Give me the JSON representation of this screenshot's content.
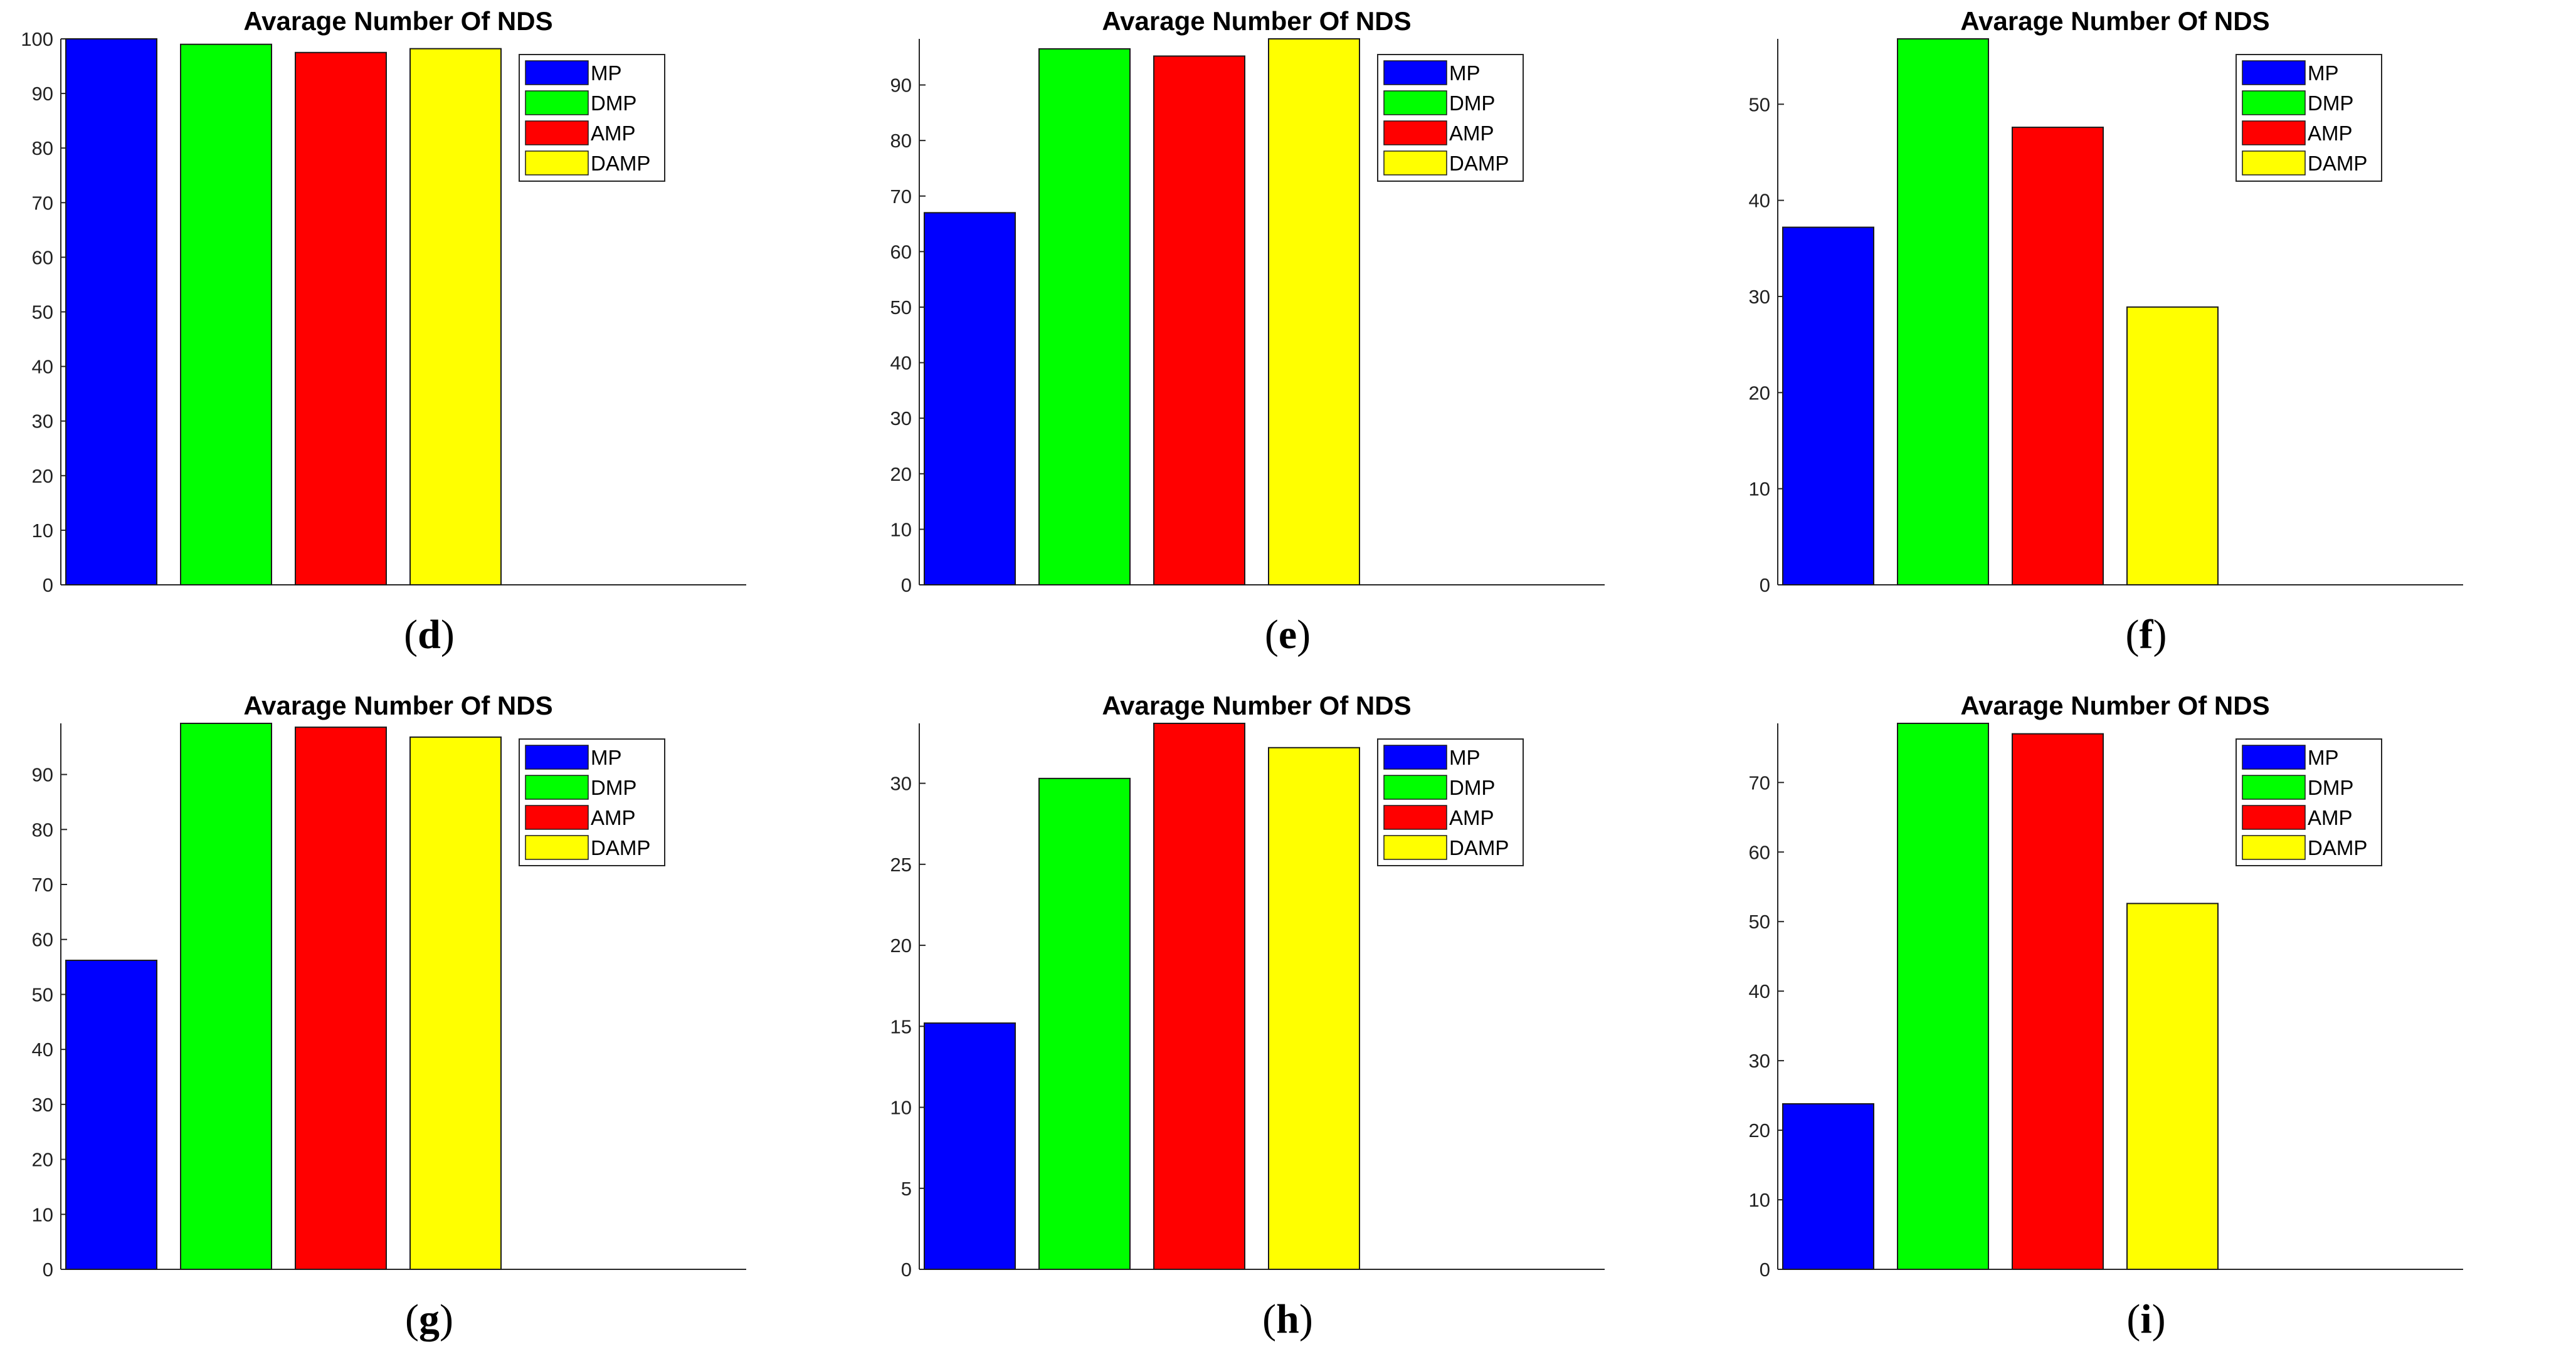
{
  "chart_data": [
    {
      "id": "d",
      "caption": "d",
      "type": "bar",
      "title": "Avarage Number Of NDS",
      "categories": [
        "MP",
        "DMP",
        "AMP",
        "DAMP"
      ],
      "values": [
        100,
        99,
        97.5,
        98.2
      ],
      "colors": [
        "#0000ff",
        "#00ff00",
        "#ff0000",
        "#ffff00"
      ],
      "ylim": [
        0,
        100
      ],
      "yticks": [
        0,
        10,
        20,
        30,
        40,
        50,
        60,
        70,
        80,
        90,
        100
      ],
      "legend": [
        "MP",
        "DMP",
        "AMP",
        "DAMP"
      ],
      "legend_position": "top-right"
    },
    {
      "id": "e",
      "caption": "e",
      "type": "bar",
      "title": "Avarage Number Of NDS",
      "categories": [
        "MP",
        "DMP",
        "AMP",
        "DAMP"
      ],
      "values": [
        67,
        96.5,
        95.2,
        98.3
      ],
      "colors": [
        "#0000ff",
        "#00ff00",
        "#ff0000",
        "#ffff00"
      ],
      "ylim": [
        0,
        98.3
      ],
      "yticks": [
        0,
        10,
        20,
        30,
        40,
        50,
        60,
        70,
        80,
        90
      ],
      "legend": [
        "MP",
        "DMP",
        "AMP",
        "DAMP"
      ],
      "legend_position": "top-right"
    },
    {
      "id": "f",
      "caption": "f",
      "type": "bar",
      "title": "Avarage Number Of NDS",
      "categories": [
        "MP",
        "DMP",
        "AMP",
        "DAMP"
      ],
      "values": [
        37.2,
        56.8,
        47.6,
        28.9
      ],
      "colors": [
        "#0000ff",
        "#00ff00",
        "#ff0000",
        "#ffff00"
      ],
      "ylim": [
        0,
        56.8
      ],
      "yticks": [
        0,
        10,
        20,
        30,
        40,
        50
      ],
      "legend": [
        "MP",
        "DMP",
        "AMP",
        "DAMP"
      ],
      "legend_position": "top-right"
    },
    {
      "id": "g",
      "caption": "g",
      "type": "bar",
      "title": "Avarage Number Of NDS",
      "categories": [
        "MP",
        "DMP",
        "AMP",
        "DAMP"
      ],
      "values": [
        56.2,
        99.3,
        98.6,
        96.8
      ],
      "colors": [
        "#0000ff",
        "#00ff00",
        "#ff0000",
        "#ffff00"
      ],
      "ylim": [
        0,
        99.3
      ],
      "yticks": [
        0,
        10,
        20,
        30,
        40,
        50,
        60,
        70,
        80,
        90
      ],
      "legend": [
        "MP",
        "DMP",
        "AMP",
        "DAMP"
      ],
      "legend_position": "top-right"
    },
    {
      "id": "h",
      "caption": "h",
      "type": "bar",
      "title": "Avarage Number Of NDS",
      "categories": [
        "MP",
        "DMP",
        "AMP",
        "DAMP"
      ],
      "values": [
        15.2,
        30.3,
        33.7,
        32.2
      ],
      "colors": [
        "#0000ff",
        "#00ff00",
        "#ff0000",
        "#ffff00"
      ],
      "ylim": [
        0,
        33.7
      ],
      "yticks": [
        0,
        5,
        10,
        15,
        20,
        25,
        30
      ],
      "legend": [
        "MP",
        "DMP",
        "AMP",
        "DAMP"
      ],
      "legend_position": "top-right"
    },
    {
      "id": "i",
      "caption": "i",
      "type": "bar",
      "title": "Avarage Number Of NDS",
      "categories": [
        "MP",
        "DMP",
        "AMP",
        "DAMP"
      ],
      "values": [
        23.8,
        78.5,
        77,
        52.6
      ],
      "colors": [
        "#0000ff",
        "#00ff00",
        "#ff0000",
        "#ffff00"
      ],
      "ylim": [
        0,
        78.5
      ],
      "yticks": [
        0,
        10,
        20,
        30,
        40,
        50,
        60,
        70
      ],
      "legend": [
        "MP",
        "DMP",
        "AMP",
        "DAMP"
      ],
      "legend_position": "top-right"
    }
  ]
}
